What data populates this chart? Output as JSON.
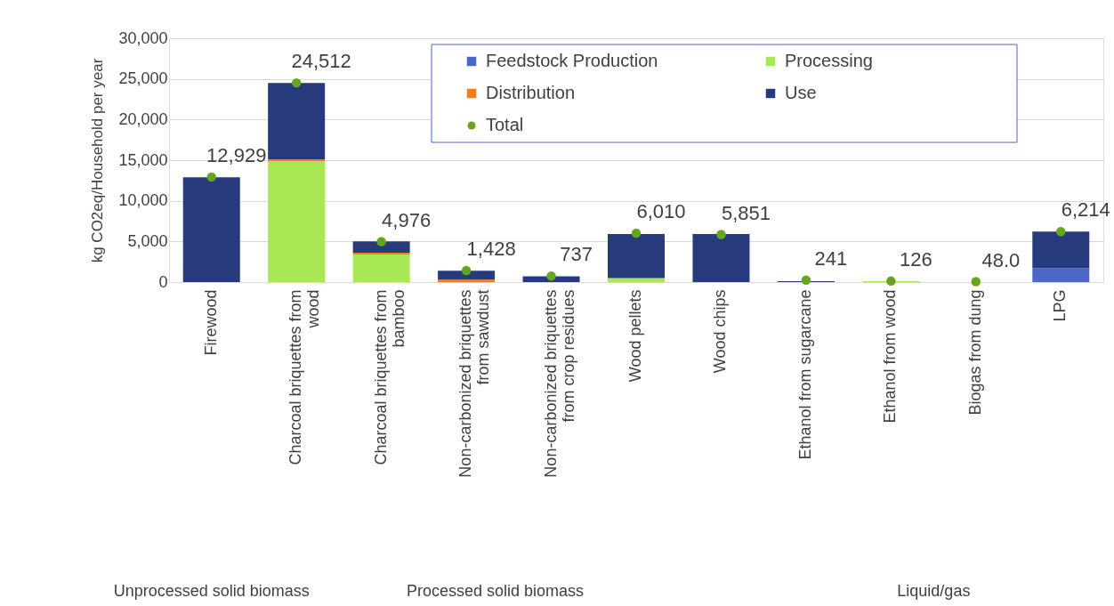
{
  "chart_data": {
    "type": "bar",
    "stacked": true,
    "ylabel": "kg CO2eq/Household  per year",
    "categories": [
      "Firewood",
      "Charcoal briquettes from wood",
      "Charcoal briquettes from bamboo",
      "Non-carbonized briquettes from sawdust",
      "Non-carbonized briquettes from crop residues",
      "Wood pellets",
      "Wood chips",
      "Ethanol from sugarcane",
      "Ethanol from wood",
      "Biogas from dung",
      "LPG"
    ],
    "series": [
      {
        "name": "Feedstock Production",
        "color": "#4a67c9",
        "values": [
          null,
          null,
          null,
          null,
          null,
          null,
          null,
          null,
          null,
          null,
          1700
        ]
      },
      {
        "name": "Processing",
        "color": "#a8e852",
        "values": [
          null,
          14900,
          3400,
          null,
          null,
          500,
          null,
          null,
          100,
          null,
          null
        ]
      },
      {
        "name": "Distribution",
        "color": "#f57d20",
        "values": [
          null,
          200,
          200,
          300,
          null,
          null,
          null,
          null,
          null,
          null,
          null
        ]
      },
      {
        "name": "Use",
        "color": "#263a7c",
        "values": [
          12900,
          9400,
          1400,
          1100,
          700,
          5400,
          5900,
          100,
          null,
          null,
          4500
        ]
      },
      {
        "name": "Total",
        "type": "scatter",
        "color": "#66a61e",
        "values": [
          12929,
          24512,
          4976,
          1428,
          737,
          6010,
          5851,
          241,
          126,
          48,
          6214
        ],
        "value_labels": [
          "12,929",
          "24,512",
          "4,976",
          "1,428",
          "737",
          "6,010",
          "5,851",
          "241",
          "126",
          "48.0",
          "6,214"
        ]
      }
    ],
    "ylim": [
      0,
      30000
    ],
    "yticks": [
      0,
      {
        "value": 5000,
        "label": "5,000"
      },
      {
        "value": 10000,
        "label": "10,000"
      },
      {
        "value": 15000,
        "label": "15,000"
      },
      {
        "value": 20000,
        "label": "20,000"
      },
      {
        "value": 25000,
        "label": "25,000"
      },
      {
        "value": 30000,
        "label": "30,000"
      }
    ],
    "grid": "y",
    "legend": "top",
    "marker": "circle",
    "annotations": [
      "Unprocessed solid biomass",
      "Processed solid biomass",
      "Liquid/gas"
    ]
  }
}
